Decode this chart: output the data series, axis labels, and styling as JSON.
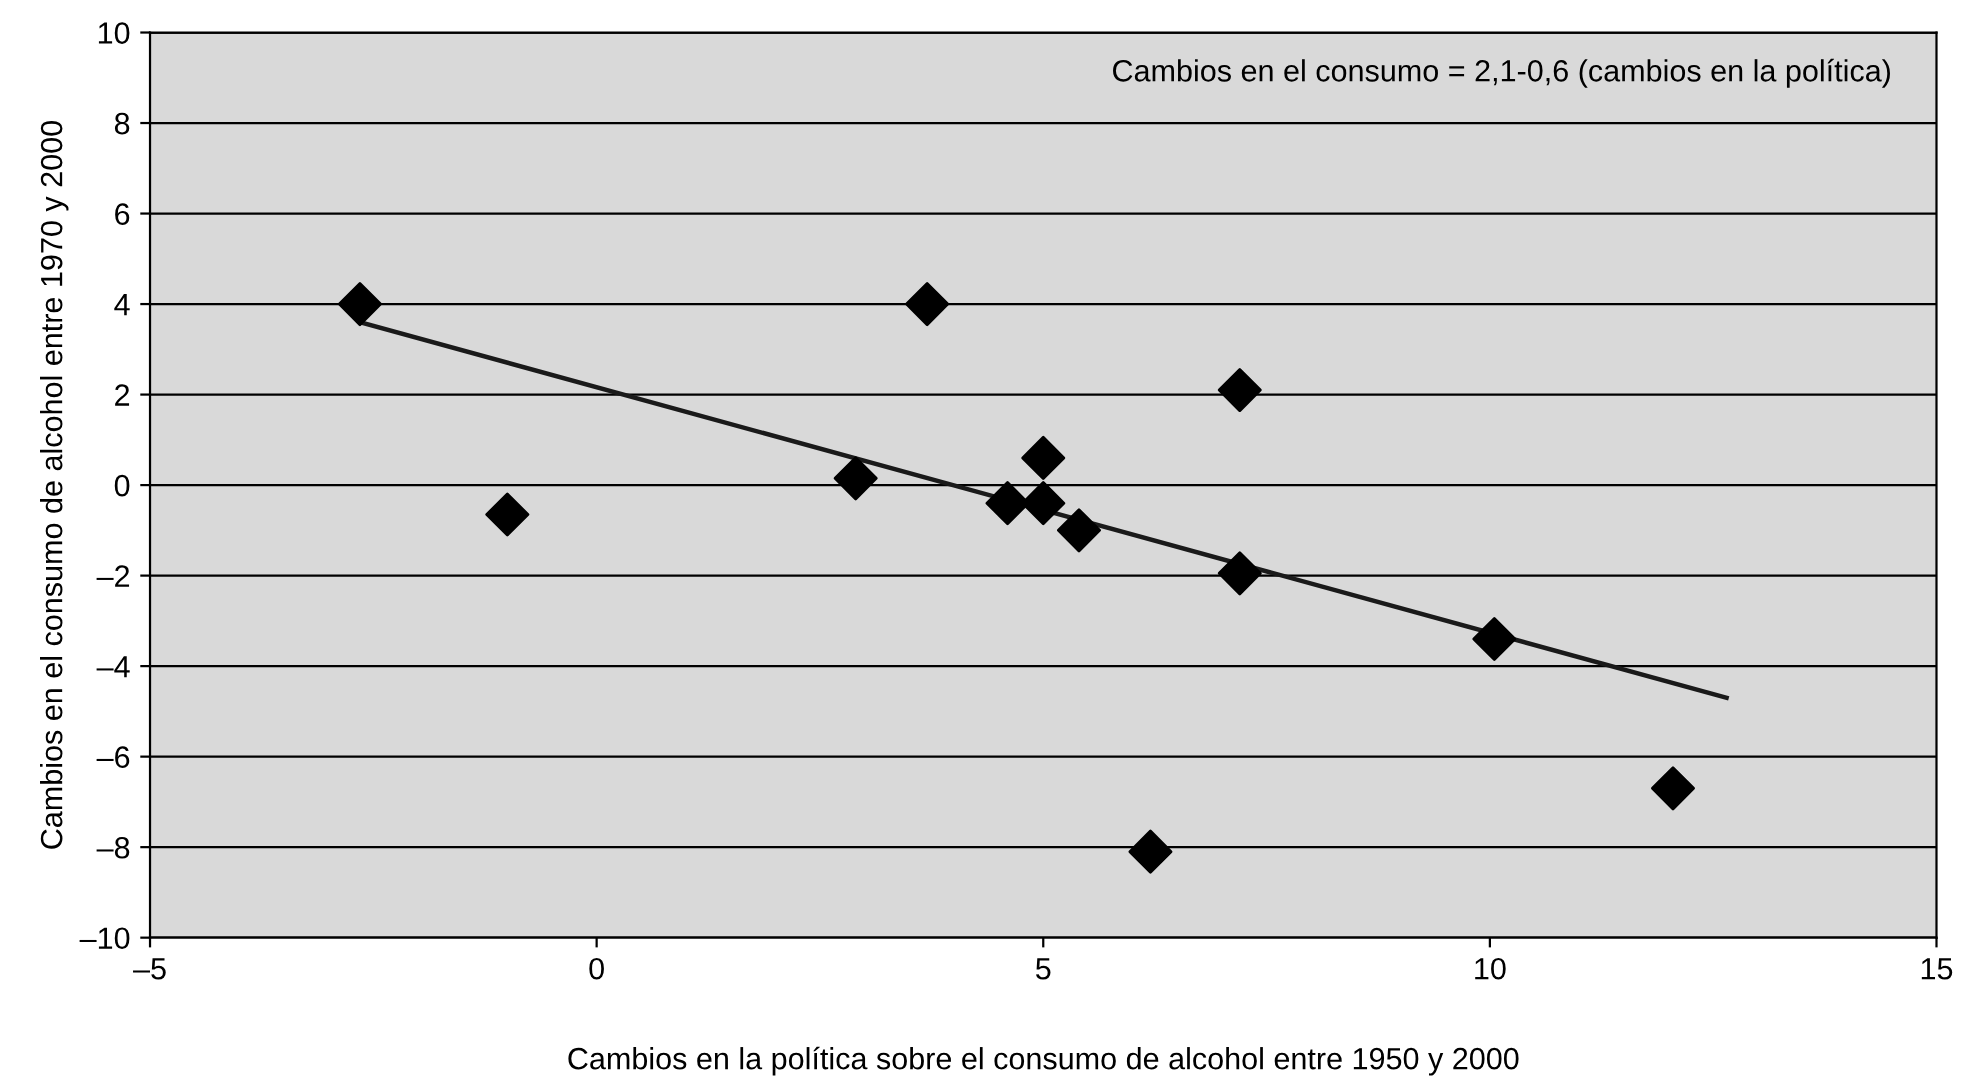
{
  "chart_data": {
    "type": "scatter",
    "xlabel": "Cambios en la política sobre el consumo de alcohol entre 1950 y 2000",
    "ylabel": "Cambios en el consumo de alcohol entre 1970 y 2000",
    "annotations": [
      "Cambios en el consumo = 2,1-0,6 (cambios en la política)"
    ],
    "xlim": [
      -5,
      15
    ],
    "xticks": [
      {
        "value": -5,
        "label": "–5"
      },
      0,
      5,
      10,
      15
    ],
    "ylim": [
      -10,
      10
    ],
    "yticks": [
      {
        "value": -10,
        "label": "–10"
      },
      {
        "value": -8,
        "label": "–8"
      },
      {
        "value": -6,
        "label": "–6"
      },
      {
        "value": -4,
        "label": "–4"
      },
      {
        "value": -2,
        "label": "–2"
      },
      0,
      2,
      4,
      6,
      8,
      10
    ],
    "grid": "y",
    "marker": "diamond",
    "legend": false,
    "series": [
      {
        "color": "#000000",
        "x": [
          -2.65,
          -1.0,
          2.9,
          3.7,
          4.6,
          5.0,
          5.0,
          5.4,
          6.2,
          7.2,
          7.2,
          10.05,
          12.05
        ],
        "values": [
          4.0,
          -0.65,
          0.15,
          4.0,
          -0.4,
          0.6,
          -0.4,
          -1.0,
          -8.1,
          2.1,
          -1.95,
          -3.4,
          -6.7
        ]
      },
      {
        "type": "line",
        "color": "#1a1a1a",
        "marker": "none",
        "x": [
          -2.65,
          12.65
        ],
        "values": [
          3.6,
          -4.7
        ]
      }
    ]
  }
}
